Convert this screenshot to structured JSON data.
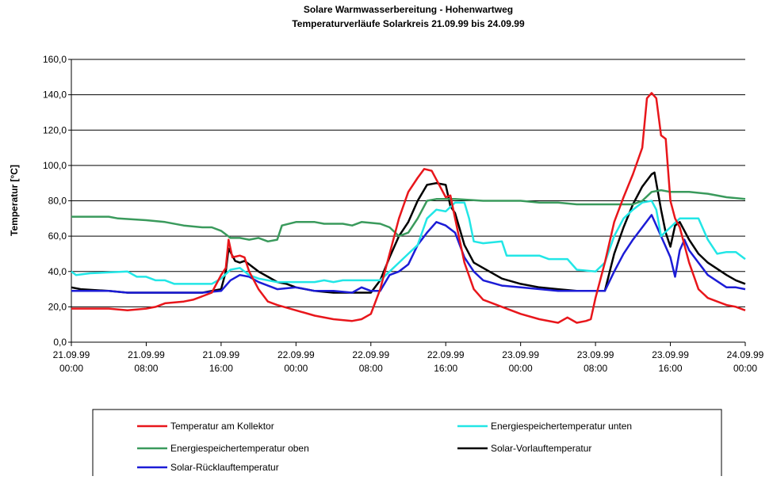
{
  "chart_data": {
    "type": "line",
    "title": "Solare Warmwasserbereitung - Hohenwartweg",
    "subtitle": "Temperaturverläufe Solarkreis 21.09.99 bis 24.09.99",
    "y_label": "Temperatur [°C]",
    "xlim": [
      0,
      72
    ],
    "xticks": [
      {
        "value": 0,
        "label": "21.09.99 00:00"
      },
      {
        "value": 8,
        "label": "21.09.99 08:00"
      },
      {
        "value": 16,
        "label": "21.09.99 16:00"
      },
      {
        "value": 24,
        "label": "22.09.99 00:00"
      },
      {
        "value": 32,
        "label": "22.09.99 08:00"
      },
      {
        "value": 40,
        "label": "22.09.99 16:00"
      },
      {
        "value": 48,
        "label": "23.09.99 00:00"
      },
      {
        "value": 56,
        "label": "23.09.99 08:00"
      },
      {
        "value": 64,
        "label": "23.09.99 16:00"
      },
      {
        "value": 72,
        "label": "24.09.99 00:00"
      }
    ],
    "ylim": [
      0,
      160
    ],
    "yticks": [
      {
        "value": 0,
        "label": "0,0"
      },
      {
        "value": 20,
        "label": "20,0"
      },
      {
        "value": 40,
        "label": "40,0"
      },
      {
        "value": 60,
        "label": "60,0"
      },
      {
        "value": 80,
        "label": "80,0"
      },
      {
        "value": 100,
        "label": "100,0"
      },
      {
        "value": 120,
        "label": "120,0"
      },
      {
        "value": 140,
        "label": "140,0"
      },
      {
        "value": 160,
        "label": "160,0"
      }
    ],
    "grid": true,
    "legend": "bottom",
    "series": [
      {
        "name": "Temperatur am Kollektor",
        "color": "#e8161b",
        "x": [
          0,
          4,
          6,
          8,
          9,
          10,
          12,
          13,
          14,
          15,
          16,
          16.5,
          16.8,
          17.2,
          18,
          18.5,
          19,
          20,
          21,
          22,
          24,
          26,
          28,
          30,
          31,
          32,
          33,
          34,
          35,
          36,
          37,
          37.7,
          38.5,
          39,
          40,
          40.5,
          41,
          42,
          43,
          44,
          46,
          48,
          50,
          52,
          53,
          54,
          55,
          55.5,
          56,
          57,
          58,
          59,
          60,
          61,
          61.5,
          62,
          62.5,
          63,
          63.5,
          64,
          64.5,
          65,
          66,
          67,
          68,
          70,
          71,
          72
        ],
        "values": [
          19,
          19,
          18,
          19,
          20,
          22,
          23,
          24,
          26,
          28,
          38,
          42,
          58,
          48,
          49,
          48,
          40,
          30,
          23,
          21,
          18,
          15,
          13,
          12,
          13,
          16,
          30,
          50,
          70,
          85,
          93,
          98,
          97,
          92,
          82,
          83,
          70,
          45,
          30,
          24,
          20,
          16,
          13,
          11,
          14,
          11,
          12,
          13,
          25,
          45,
          68,
          82,
          95,
          110,
          138,
          141,
          138,
          117,
          115,
          80,
          70,
          65,
          45,
          30,
          25,
          21,
          20,
          18
        ]
      },
      {
        "name": "Energiespeichertemperatur unten",
        "color": "#22e6e6",
        "x": [
          0,
          0.5,
          2,
          6,
          7,
          8,
          9,
          10,
          11,
          15,
          16,
          17,
          18,
          19,
          20,
          22,
          26,
          27,
          28,
          29,
          33,
          34,
          35,
          36,
          37,
          38,
          39,
          40,
          41,
          42,
          42.5,
          43,
          44,
          46,
          46.5,
          50,
          51,
          53,
          54,
          56,
          57,
          58,
          59,
          60,
          61,
          62,
          62.5,
          63,
          64,
          65,
          67,
          68,
          69,
          70,
          71,
          72
        ],
        "values": [
          40,
          38,
          39,
          40,
          37,
          37,
          35,
          35,
          33,
          33,
          36,
          41,
          42,
          38,
          36,
          34,
          34,
          35,
          34,
          35,
          35,
          40,
          45,
          50,
          55,
          70,
          75,
          74,
          79,
          79,
          70,
          57,
          56,
          57,
          49,
          49,
          47,
          47,
          41,
          40,
          45,
          60,
          70,
          75,
          79,
          80,
          75,
          60,
          65,
          70,
          70,
          58,
          50,
          51,
          51,
          47
        ]
      },
      {
        "name": "Energiespeichertemperatur oben",
        "color": "#3a9a5c",
        "x": [
          0,
          4,
          5,
          8,
          10,
          12,
          14,
          15,
          16,
          17,
          18,
          19,
          20,
          21,
          22,
          22.5,
          24,
          26,
          27,
          29,
          30,
          31,
          33,
          34,
          35,
          36,
          37,
          38,
          39,
          41,
          44,
          48,
          50,
          52,
          54,
          57,
          60,
          61,
          62,
          63,
          64,
          66,
          68,
          70,
          72
        ],
        "values": [
          71,
          71,
          70,
          69,
          68,
          66,
          65,
          65,
          63,
          59,
          59,
          58,
          59,
          57,
          58,
          66,
          68,
          68,
          67,
          67,
          66,
          68,
          67,
          65,
          60,
          62,
          70,
          80,
          81,
          81,
          80,
          80,
          79,
          79,
          78,
          78,
          78,
          80,
          85,
          86,
          85,
          85,
          84,
          82,
          81
        ]
      },
      {
        "name": "Solar-Vorlauftemperatur",
        "color": "#000000",
        "x": [
          0,
          1,
          4,
          6,
          8,
          10,
          14,
          16,
          16.5,
          16.8,
          17.5,
          18,
          18.5,
          19,
          20,
          21,
          22,
          23,
          24,
          26,
          28,
          32,
          33,
          34,
          35,
          36,
          37,
          38,
          39,
          40,
          40.5,
          41,
          42,
          43,
          44,
          46,
          48,
          50,
          52,
          54,
          57,
          58,
          59,
          60,
          61,
          62,
          62.3,
          63,
          63.5,
          64,
          64.5,
          65,
          66,
          67,
          68,
          70,
          71,
          72
        ],
        "values": [
          31,
          30,
          29,
          28,
          28,
          28,
          28,
          30,
          40,
          53,
          46,
          45,
          46,
          44,
          40,
          37,
          34,
          33,
          31,
          29,
          28,
          28,
          35,
          48,
          60,
          68,
          80,
          89,
          90,
          89,
          77,
          73,
          55,
          45,
          42,
          36,
          33,
          31,
          30,
          29,
          29,
          50,
          65,
          78,
          88,
          95,
          96,
          75,
          62,
          54,
          66,
          68,
          58,
          50,
          45,
          38,
          35,
          33
        ]
      },
      {
        "name": "Solar-Rücklauftemperatur",
        "color": "#1c1cd6",
        "x": [
          0,
          4,
          6,
          10,
          14,
          16,
          17,
          18,
          19,
          20,
          21,
          22,
          24,
          26,
          28,
          30,
          31,
          32,
          33,
          34,
          35,
          36,
          37,
          38,
          39,
          40,
          41,
          42,
          43,
          44,
          46,
          48,
          52,
          57,
          58,
          59,
          60,
          61,
          62,
          63,
          64,
          64.5,
          65,
          65.5,
          66,
          67,
          68,
          70,
          71,
          72
        ],
        "values": [
          29,
          29,
          28,
          28,
          28,
          29,
          35,
          38,
          37,
          34,
          32,
          30,
          31,
          29,
          29,
          28,
          31,
          29,
          29,
          38,
          40,
          44,
          55,
          62,
          68,
          66,
          62,
          48,
          40,
          35,
          32,
          31,
          29,
          29,
          40,
          50,
          58,
          65,
          72,
          60,
          48,
          37,
          52,
          58,
          52,
          45,
          38,
          31,
          31,
          30
        ]
      }
    ]
  }
}
